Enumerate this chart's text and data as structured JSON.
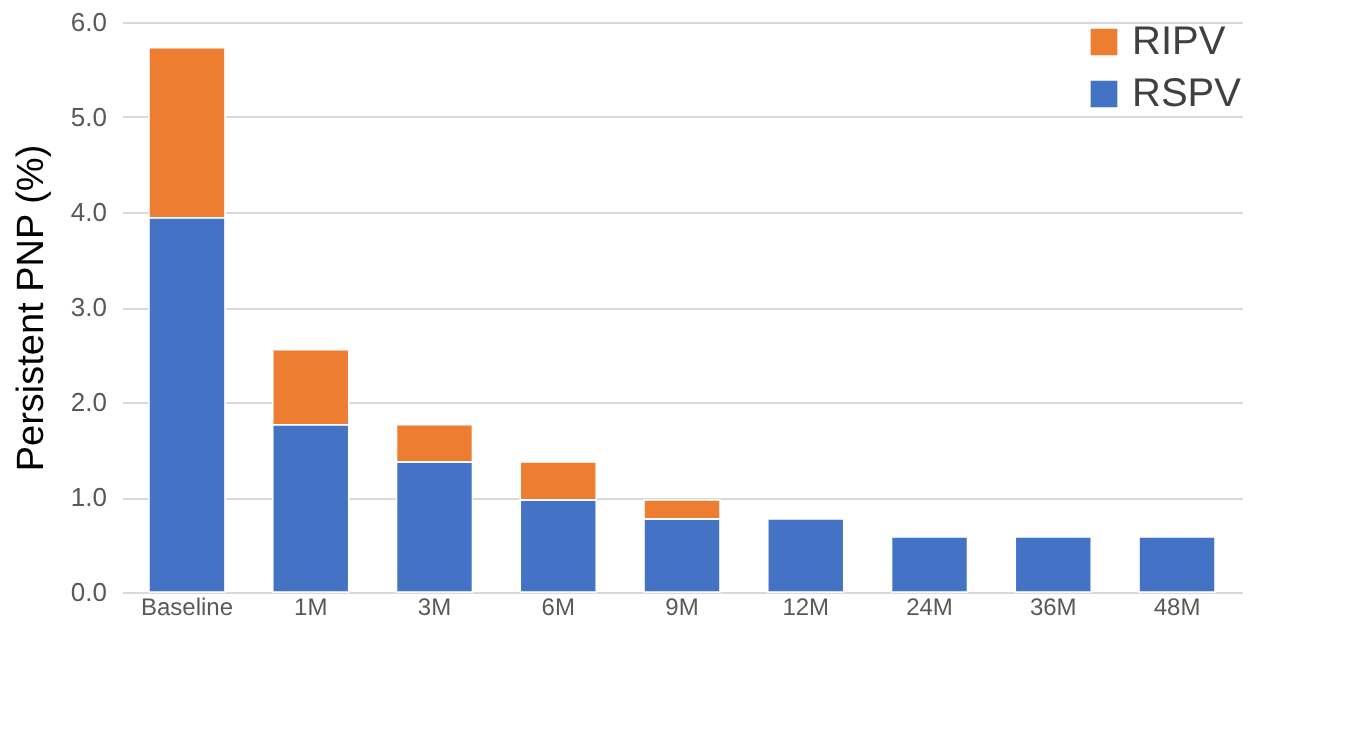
{
  "chart_data": {
    "type": "bar",
    "stacked": true,
    "ylabel": "Persistent PNP (%)",
    "categories": [
      "Baseline",
      "1M",
      "3M",
      "6M",
      "9M",
      "12M",
      "24M",
      "36M",
      "48M"
    ],
    "series": [
      {
        "name": "RSPV",
        "color": "#4472c4",
        "values": [
          3.94,
          1.76,
          1.37,
          0.97,
          0.77,
          0.77,
          0.58,
          0.58,
          0.58
        ]
      },
      {
        "name": "RIPV",
        "color": "#ed7d31",
        "values": [
          1.79,
          0.79,
          0.39,
          0.4,
          0.2,
          null,
          null,
          null,
          null
        ]
      }
    ],
    "ylim": [
      0,
      6
    ],
    "yticks": [
      {
        "value": 0,
        "label": "0.0"
      },
      {
        "value": 1,
        "label": "1.0"
      },
      {
        "value": 2,
        "label": "2.0"
      },
      {
        "value": 3,
        "label": "3.0"
      },
      {
        "value": 4,
        "label": "4.0"
      },
      {
        "value": 5,
        "label": "5.0"
      },
      {
        "value": 6,
        "label": "6.0"
      }
    ],
    "grid": "y",
    "legend": "top right"
  }
}
